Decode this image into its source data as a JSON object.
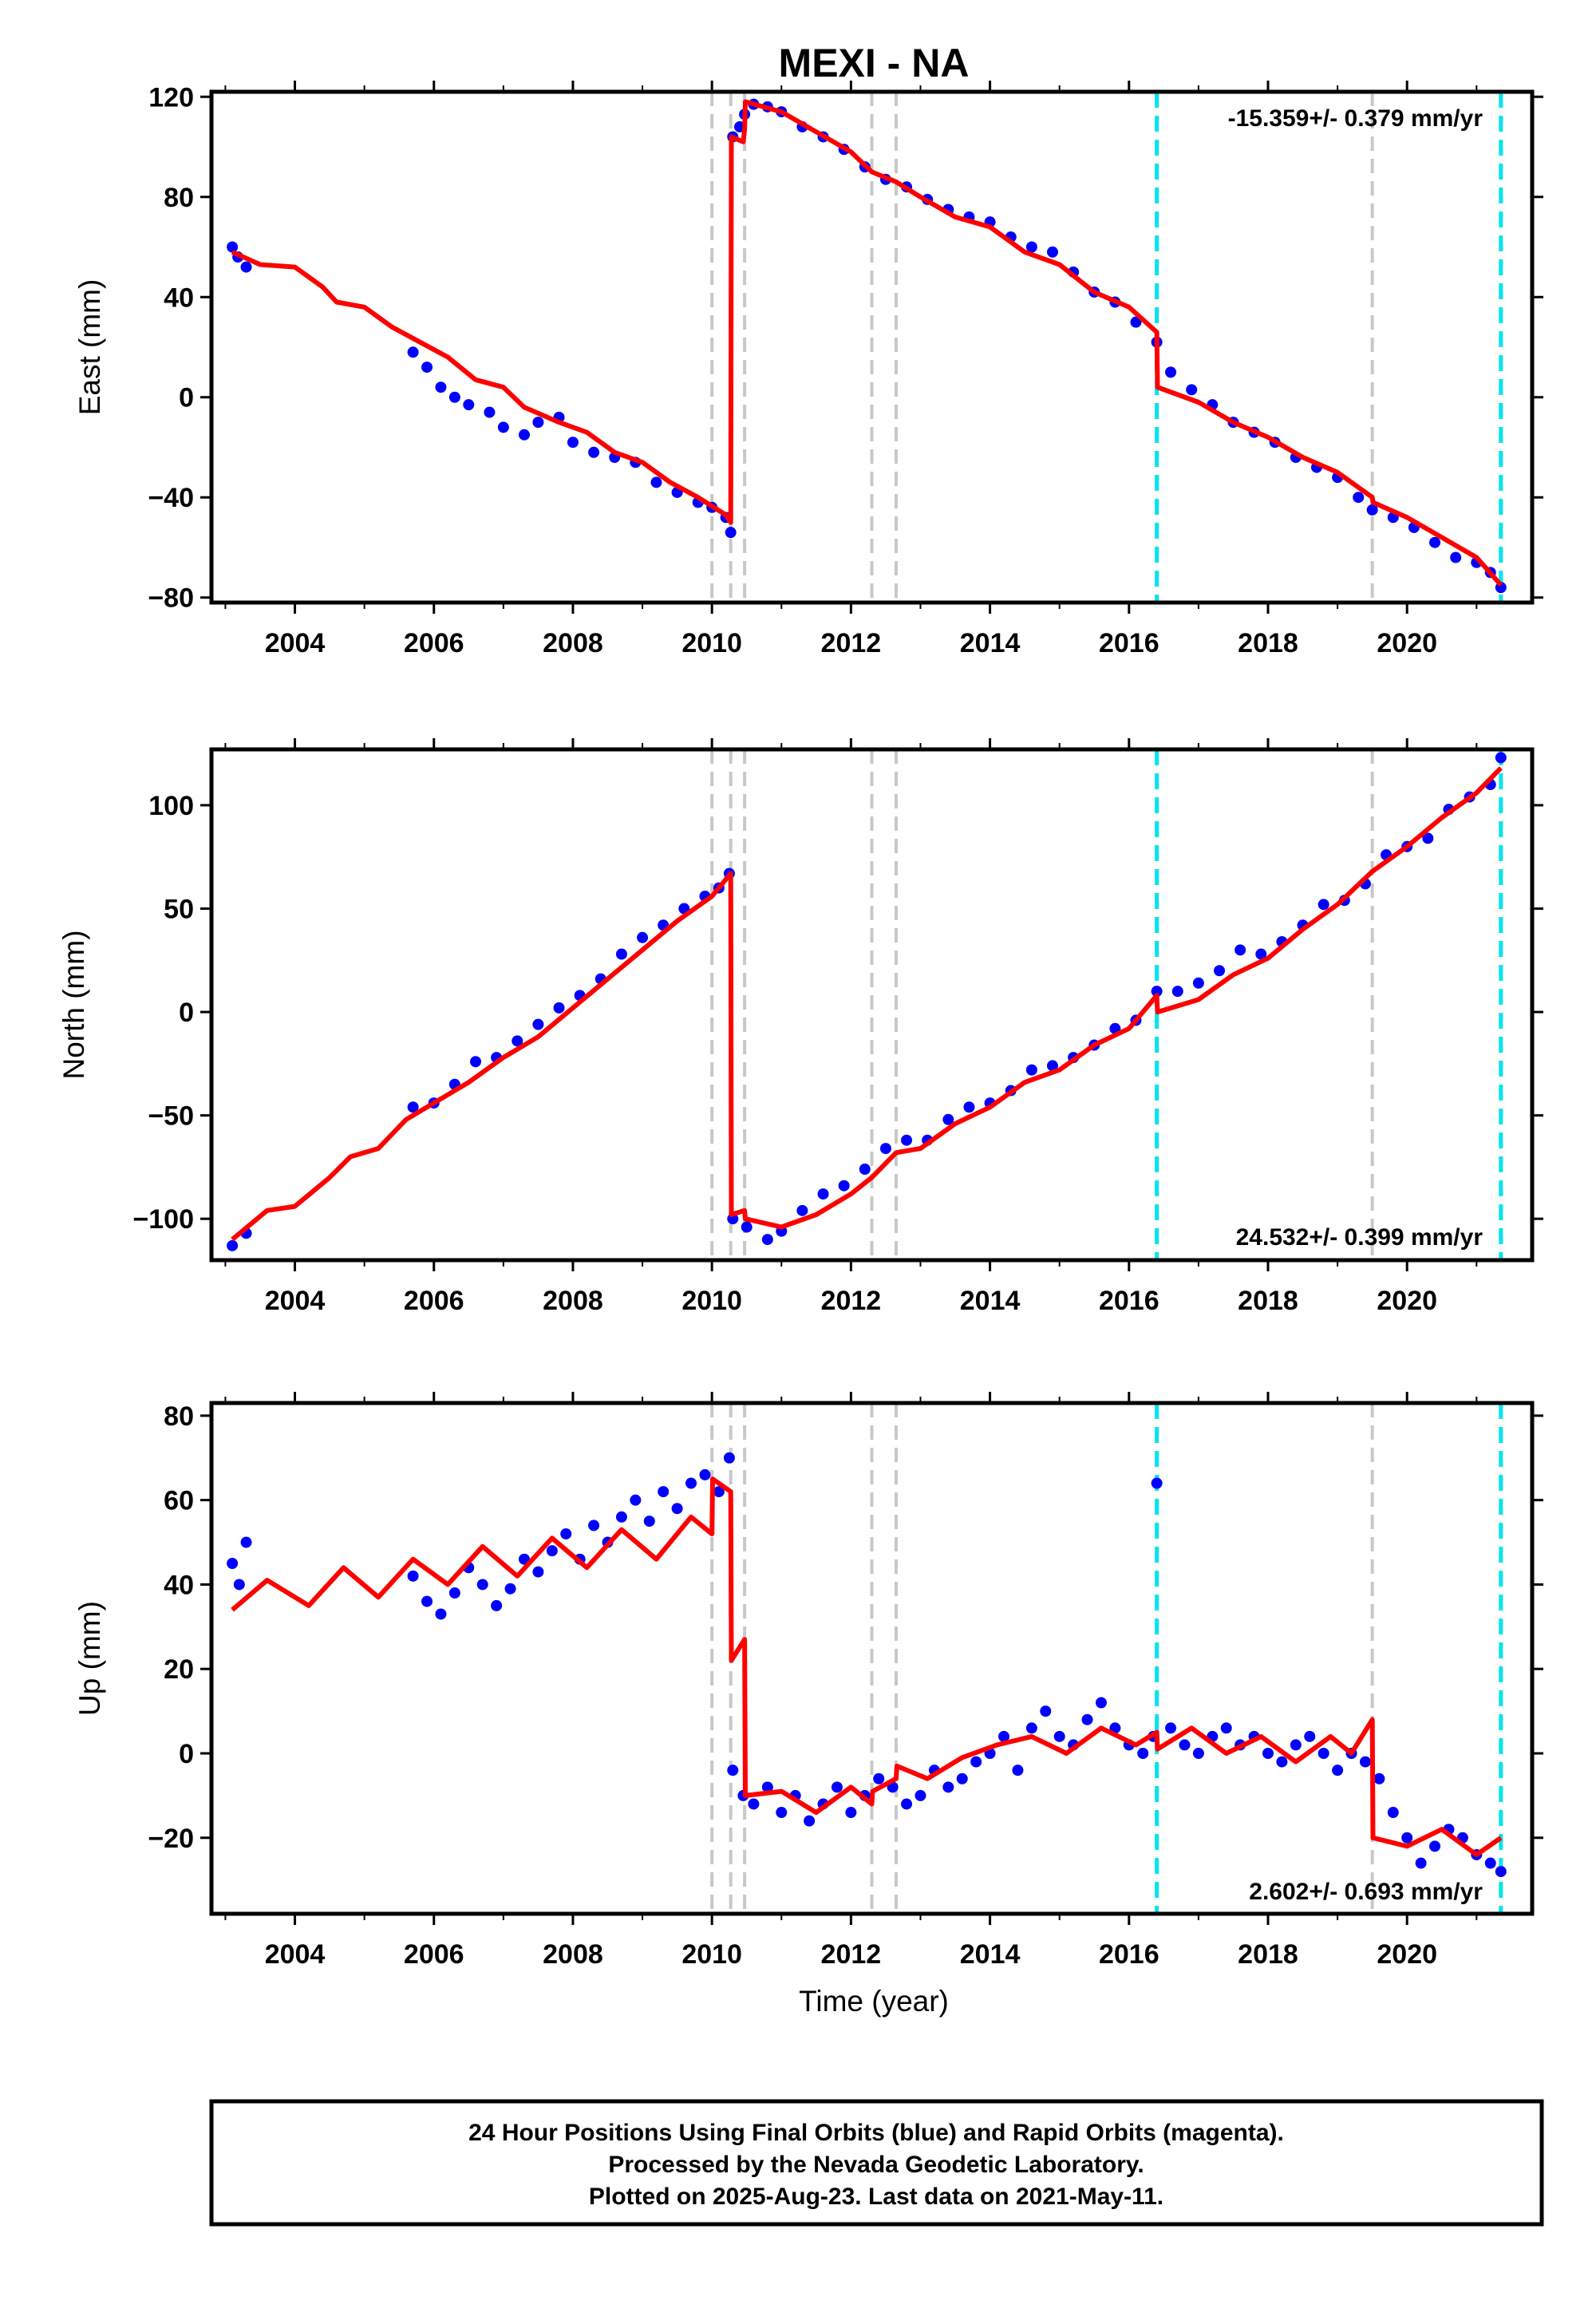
{
  "figure": {
    "title": "MEXI - NA",
    "xlabel": "Time (year)",
    "footer": [
      "24 Hour Positions Using Final Orbits (blue) and Rapid Orbits (magenta).",
      "Processed by the Nevada Geodetic Laboratory.",
      "Plotted on 2025-Aug-23. Last data on 2021-May-11."
    ],
    "colors": {
      "data": "#0000ff",
      "model": "#ff0000",
      "event_gray": "#c8c8c8",
      "event_cyan": "#00e5ee"
    }
  },
  "chart_data": [
    {
      "type": "scatter",
      "ylabel": "East (mm)",
      "rate_label": "-15.359+/- 0.379 mm/yr",
      "rate_position": "top-right",
      "xlim": [
        2002.8,
        2021.8
      ],
      "ylim": [
        -82,
        122
      ],
      "xticks": [
        2004,
        2006,
        2008,
        2010,
        2012,
        2014,
        2016,
        2018,
        2020
      ],
      "xtick_labels": [
        "2004",
        "2006",
        "2008",
        "2010",
        "2012",
        "2014",
        "2016",
        "2018",
        "2020"
      ],
      "yticks": [
        -80,
        -40,
        0,
        40,
        80,
        120
      ],
      "ytick_labels": [
        "−80",
        "−40",
        "0",
        "40",
        "80",
        "120"
      ],
      "events_gray": [
        2010.0,
        2010.27,
        2010.47,
        2012.3,
        2012.65,
        2019.5
      ],
      "events_cyan": [
        2016.4,
        2021.35
      ],
      "series": [
        {
          "role": "observed",
          "x": [
            2003.1,
            2003.18,
            2003.3,
            2005.7,
            2005.9,
            2006.1,
            2006.3,
            2006.5,
            2006.8,
            2007.0,
            2007.3,
            2007.5,
            2007.8,
            2008.0,
            2008.3,
            2008.6,
            2008.9,
            2009.2,
            2009.5,
            2009.8,
            2010.0,
            2010.2,
            2010.27,
            2010.3,
            2010.4,
            2010.47,
            2010.6,
            2010.8,
            2011.0,
            2011.3,
            2011.6,
            2011.9,
            2012.2,
            2012.5,
            2012.8,
            2013.1,
            2013.4,
            2013.7,
            2014.0,
            2014.3,
            2014.6,
            2014.9,
            2015.2,
            2015.5,
            2015.8,
            2016.1,
            2016.4,
            2016.6,
            2016.9,
            2017.2,
            2017.5,
            2017.8,
            2018.1,
            2018.4,
            2018.7,
            2019.0,
            2019.3,
            2019.5,
            2019.8,
            2020.1,
            2020.4,
            2020.7,
            2021.0,
            2021.2,
            2021.35
          ],
          "y": [
            60,
            56,
            52,
            18,
            12,
            4,
            0,
            -3,
            -6,
            -12,
            -15,
            -10,
            -8,
            -18,
            -22,
            -24,
            -26,
            -34,
            -38,
            -42,
            -44,
            -48,
            -54,
            104,
            108,
            113,
            117,
            116,
            114,
            108,
            104,
            99,
            92,
            87,
            84,
            79,
            75,
            72,
            70,
            64,
            60,
            58,
            50,
            42,
            38,
            30,
            22,
            10,
            3,
            -3,
            -10,
            -14,
            -18,
            -24,
            -28,
            -32,
            -40,
            -45,
            -48,
            -52,
            -58,
            -64,
            -66,
            -70,
            -76
          ]
        },
        {
          "role": "model",
          "x": [
            2003.1,
            2003.5,
            2004.0,
            2004.4,
            2004.6,
            2005.0,
            2005.4,
            2005.8,
            2006.2,
            2006.6,
            2007.0,
            2007.3,
            2007.8,
            2008.2,
            2008.6,
            2009.0,
            2009.4,
            2009.8,
            2010.2,
            2010.27,
            2010.28,
            2010.45,
            2010.47,
            2010.48,
            2011.0,
            2011.5,
            2012.0,
            2012.3,
            2012.65,
            2013.0,
            2013.5,
            2014.0,
            2014.5,
            2015.0,
            2015.5,
            2016.0,
            2016.4,
            2016.41,
            2017.0,
            2017.5,
            2018.0,
            2018.5,
            2019.0,
            2019.5,
            2019.51,
            2020.0,
            2020.5,
            2021.0,
            2021.35
          ],
          "y": [
            58,
            53,
            52,
            44,
            38,
            36,
            28,
            22,
            16,
            7,
            4,
            -4,
            -10,
            -14,
            -22,
            -26,
            -34,
            -40,
            -47,
            -50,
            104,
            102,
            107,
            118,
            114,
            106,
            98,
            90,
            86,
            80,
            72,
            68,
            58,
            53,
            42,
            36,
            26,
            4,
            -2,
            -10,
            -16,
            -24,
            -30,
            -40,
            -42,
            -48,
            -56,
            -64,
            -75
          ]
        }
      ]
    },
    {
      "type": "scatter",
      "ylabel": "North (mm)",
      "rate_label": "24.532+/- 0.399 mm/yr",
      "rate_position": "bottom-right",
      "xlim": [
        2002.8,
        2021.8
      ],
      "ylim": [
        -120,
        127
      ],
      "xticks": [
        2004,
        2006,
        2008,
        2010,
        2012,
        2014,
        2016,
        2018,
        2020
      ],
      "xtick_labels": [
        "2004",
        "2006",
        "2008",
        "2010",
        "2012",
        "2014",
        "2016",
        "2018",
        "2020"
      ],
      "yticks": [
        -100,
        -50,
        0,
        50,
        100
      ],
      "ytick_labels": [
        "−100",
        "−50",
        "0",
        "50",
        "100"
      ],
      "events_gray": [
        2010.0,
        2010.27,
        2010.47,
        2012.3,
        2012.65,
        2019.5
      ],
      "events_cyan": [
        2016.4,
        2021.35
      ],
      "series": [
        {
          "role": "observed",
          "x": [
            2003.1,
            2003.3,
            2005.7,
            2006.0,
            2006.3,
            2006.6,
            2006.9,
            2007.2,
            2007.5,
            2007.8,
            2008.1,
            2008.4,
            2008.7,
            2009.0,
            2009.3,
            2009.6,
            2009.9,
            2010.1,
            2010.25,
            2010.3,
            2010.5,
            2010.8,
            2011.0,
            2011.3,
            2011.6,
            2011.9,
            2012.2,
            2012.5,
            2012.8,
            2013.1,
            2013.4,
            2013.7,
            2014.0,
            2014.3,
            2014.6,
            2014.9,
            2015.2,
            2015.5,
            2015.8,
            2016.1,
            2016.4,
            2016.7,
            2017.0,
            2017.3,
            2017.6,
            2017.9,
            2018.2,
            2018.5,
            2018.8,
            2019.1,
            2019.4,
            2019.7,
            2020.0,
            2020.3,
            2020.6,
            2020.9,
            2021.2,
            2021.35
          ],
          "y": [
            -113,
            -107,
            -46,
            -44,
            -35,
            -24,
            -22,
            -14,
            -6,
            2,
            8,
            16,
            28,
            36,
            42,
            50,
            56,
            60,
            67,
            -100,
            -104,
            -110,
            -106,
            -96,
            -88,
            -84,
            -76,
            -66,
            -62,
            -62,
            -52,
            -46,
            -44,
            -38,
            -28,
            -26,
            -22,
            -16,
            -8,
            -4,
            10,
            10,
            14,
            20,
            30,
            28,
            34,
            42,
            52,
            54,
            62,
            76,
            80,
            84,
            98,
            104,
            110,
            123
          ]
        },
        {
          "role": "model",
          "x": [
            2003.1,
            2003.6,
            2004.0,
            2004.5,
            2004.8,
            2005.2,
            2005.6,
            2006.0,
            2006.5,
            2007.0,
            2007.5,
            2008.0,
            2008.5,
            2009.0,
            2009.5,
            2010.0,
            2010.27,
            2010.28,
            2010.47,
            2010.48,
            2011.0,
            2011.5,
            2012.0,
            2012.3,
            2012.65,
            2013.0,
            2013.5,
            2014.0,
            2014.5,
            2015.0,
            2015.5,
            2016.0,
            2016.4,
            2016.41,
            2017.0,
            2017.5,
            2018.0,
            2018.5,
            2019.0,
            2019.5,
            2020.0,
            2020.5,
            2021.0,
            2021.35
          ],
          "y": [
            -110,
            -96,
            -94,
            -80,
            -70,
            -66,
            -52,
            -44,
            -34,
            -22,
            -12,
            2,
            16,
            30,
            44,
            56,
            67,
            -98,
            -96,
            -100,
            -104,
            -98,
            -88,
            -80,
            -68,
            -66,
            -54,
            -46,
            -34,
            -28,
            -16,
            -8,
            8,
            0,
            6,
            18,
            26,
            40,
            52,
            68,
            80,
            94,
            106,
            118
          ]
        }
      ]
    },
    {
      "type": "scatter",
      "ylabel": "Up (mm)",
      "rate_label": "2.602+/- 0.693 mm/yr",
      "rate_position": "bottom-right",
      "xlim": [
        2002.8,
        2021.8
      ],
      "ylim": [
        -38,
        83
      ],
      "xticks": [
        2004,
        2006,
        2008,
        2010,
        2012,
        2014,
        2016,
        2018,
        2020
      ],
      "xtick_labels": [
        "2004",
        "2006",
        "2008",
        "2010",
        "2012",
        "2014",
        "2016",
        "2018",
        "2020"
      ],
      "yticks": [
        -20,
        0,
        20,
        40,
        60,
        80
      ],
      "ytick_labels": [
        "−20",
        "0",
        "20",
        "40",
        "60",
        "80"
      ],
      "events_gray": [
        2010.0,
        2010.27,
        2010.47,
        2012.3,
        2012.65,
        2019.5
      ],
      "events_cyan": [
        2016.4,
        2021.35
      ],
      "series": [
        {
          "role": "observed",
          "x": [
            2003.1,
            2003.2,
            2003.3,
            2005.7,
            2005.9,
            2006.1,
            2006.3,
            2006.5,
            2006.7,
            2006.9,
            2007.1,
            2007.3,
            2007.5,
            2007.7,
            2007.9,
            2008.1,
            2008.3,
            2008.5,
            2008.7,
            2008.9,
            2009.1,
            2009.3,
            2009.5,
            2009.7,
            2009.9,
            2010.1,
            2010.25,
            2010.3,
            2010.45,
            2010.6,
            2010.8,
            2011.0,
            2011.2,
            2011.4,
            2011.6,
            2011.8,
            2012.0,
            2012.2,
            2012.4,
            2012.6,
            2012.8,
            2013.0,
            2013.2,
            2013.4,
            2013.6,
            2013.8,
            2014.0,
            2014.2,
            2014.4,
            2014.6,
            2014.8,
            2015.0,
            2015.2,
            2015.4,
            2015.6,
            2015.8,
            2016.0,
            2016.2,
            2016.35,
            2016.4,
            2016.6,
            2016.8,
            2017.0,
            2017.2,
            2017.4,
            2017.6,
            2017.8,
            2018.0,
            2018.2,
            2018.4,
            2018.6,
            2018.8,
            2019.0,
            2019.2,
            2019.4,
            2019.6,
            2019.8,
            2020.0,
            2020.2,
            2020.4,
            2020.6,
            2020.8,
            2021.0,
            2021.2,
            2021.35
          ],
          "y": [
            45,
            40,
            50,
            42,
            36,
            33,
            38,
            44,
            40,
            35,
            39,
            46,
            43,
            48,
            52,
            46,
            54,
            50,
            56,
            60,
            55,
            62,
            58,
            64,
            66,
            62,
            70,
            -4,
            -10,
            -12,
            -8,
            -14,
            -10,
            -16,
            -12,
            -8,
            -14,
            -10,
            -6,
            -8,
            -12,
            -10,
            -4,
            -8,
            -6,
            -2,
            0,
            4,
            -4,
            6,
            10,
            4,
            2,
            8,
            12,
            6,
            2,
            0,
            4,
            64,
            6,
            2,
            0,
            4,
            6,
            2,
            4,
            0,
            -2,
            2,
            4,
            0,
            -4,
            0,
            -2,
            -6,
            -14,
            -20,
            -26,
            -22,
            -18,
            -20,
            -24,
            -26,
            -28
          ]
        },
        {
          "role": "model",
          "x": [
            2003.1,
            2003.6,
            2004.2,
            2004.7,
            2005.2,
            2005.7,
            2006.2,
            2006.7,
            2007.2,
            2007.7,
            2008.2,
            2008.7,
            2009.2,
            2009.7,
            2010.0,
            2010.01,
            2010.27,
            2010.28,
            2010.47,
            2010.48,
            2011.0,
            2011.5,
            2012.0,
            2012.3,
            2012.31,
            2012.65,
            2012.66,
            2013.1,
            2013.6,
            2014.1,
            2014.6,
            2015.1,
            2015.6,
            2016.1,
            2016.4,
            2016.41,
            2016.9,
            2017.4,
            2017.9,
            2018.4,
            2018.9,
            2019.2,
            2019.5,
            2019.51,
            2020.0,
            2020.5,
            2021.0,
            2021.35
          ],
          "y": [
            34,
            41,
            35,
            44,
            37,
            46,
            40,
            49,
            42,
            51,
            44,
            53,
            46,
            56,
            52,
            65,
            62,
            22,
            27,
            -10,
            -9,
            -14,
            -8,
            -12,
            -9,
            -6,
            -3,
            -6,
            -1,
            2,
            4,
            0,
            6,
            2,
            5,
            1,
            6,
            0,
            4,
            -2,
            4,
            0,
            8,
            -20,
            -22,
            -18,
            -24,
            -20
          ]
        }
      ]
    }
  ]
}
